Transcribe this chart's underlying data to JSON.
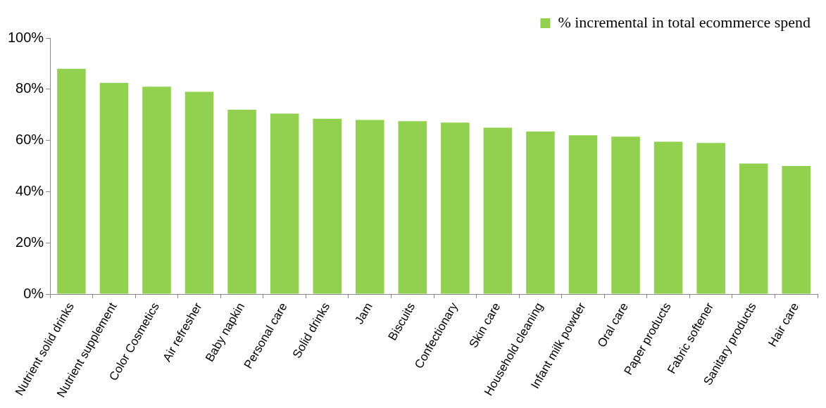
{
  "chart_data": {
    "type": "bar",
    "categories": [
      "Nutrient solid drinks",
      "Nutrient supplement",
      "Color Cosmetics",
      "Air refresher",
      "Baby napkin",
      "Personal care",
      "Solid drinks",
      "Jam",
      "Biscuits",
      "Confectionary",
      "Skin care",
      "Household cleaning",
      "Infant milk powder",
      "Oral care",
      "Paper products",
      "Fabric softener",
      "Sanitary products",
      "Hair care"
    ],
    "series": [
      {
        "name": "% incremental in total ecommerce spend",
        "color": "#92d050",
        "values": [
          88,
          82.5,
          81,
          79,
          72,
          70.5,
          68.5,
          68,
          67.5,
          67,
          65,
          63.5,
          62,
          61.5,
          59.5,
          59,
          51,
          50
        ]
      }
    ],
    "ylim": [
      0,
      100
    ],
    "yticks": [
      {
        "value": 0,
        "label": "0%"
      },
      {
        "value": 20,
        "label": "20%"
      },
      {
        "value": 40,
        "label": "40%"
      },
      {
        "value": 60,
        "label": "60%"
      },
      {
        "value": 80,
        "label": "80%"
      },
      {
        "value": 100,
        "label": "100%"
      }
    ],
    "grid": false,
    "legend": "top right"
  }
}
